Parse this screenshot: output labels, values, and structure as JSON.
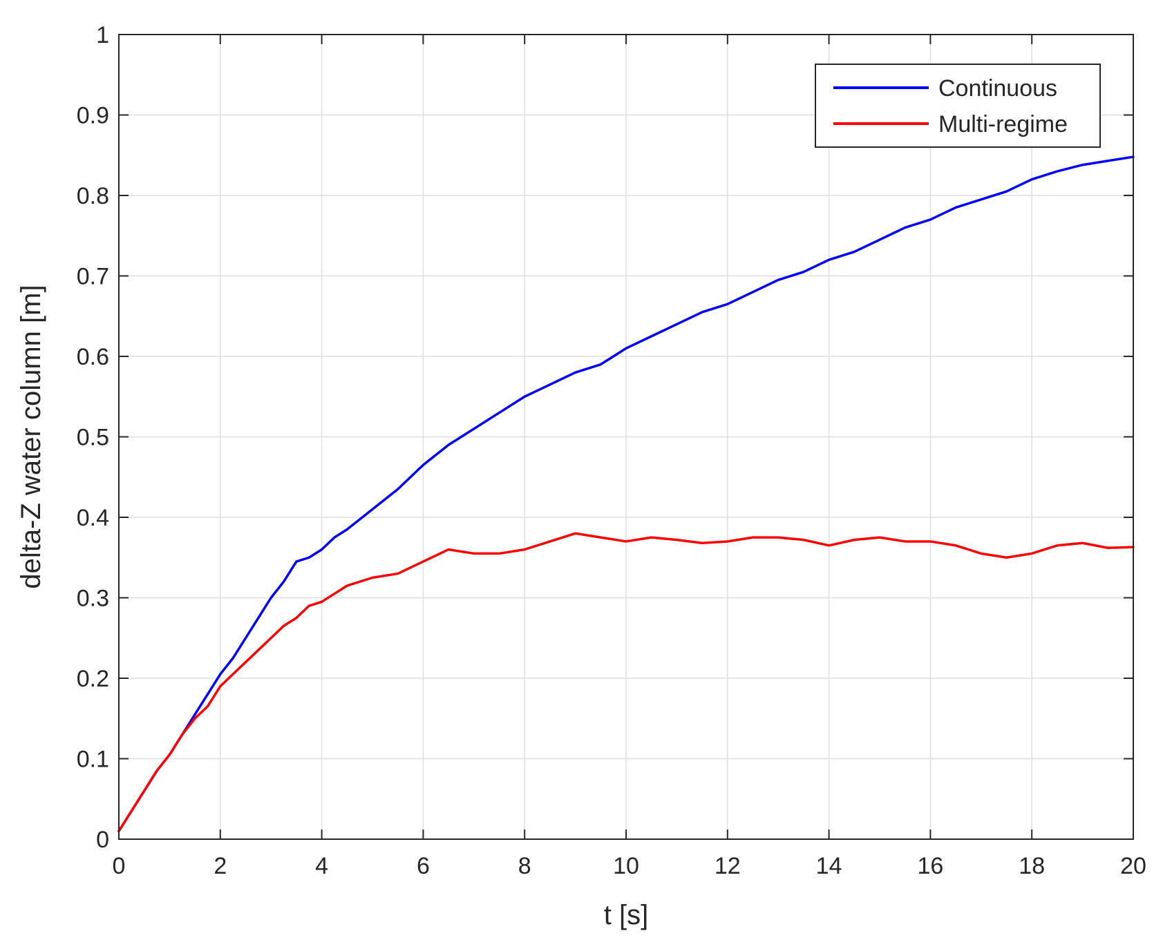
{
  "chart_data": {
    "type": "line",
    "title": "",
    "xlabel": "t [s]",
    "ylabel": "delta-Z water column [m]",
    "xlim": [
      0,
      20
    ],
    "ylim": [
      0,
      1
    ],
    "xticks": [
      0,
      2,
      4,
      6,
      8,
      10,
      12,
      14,
      16,
      18,
      20
    ],
    "yticks": [
      0,
      0.1,
      0.2,
      0.3,
      0.4,
      0.5,
      0.6,
      0.7,
      0.8,
      0.9,
      1
    ],
    "xtick_labels": [
      "0",
      "2",
      "4",
      "6",
      "8",
      "10",
      "12",
      "14",
      "16",
      "18",
      "20"
    ],
    "ytick_labels": [
      "0",
      "0.1",
      "0.2",
      "0.3",
      "0.4",
      "0.5",
      "0.6",
      "0.7",
      "0.8",
      "0.9",
      "1"
    ],
    "grid": true,
    "legend_position": "top-right",
    "series": [
      {
        "name": "Continuous",
        "color": "#0000ff",
        "x": [
          0,
          0.25,
          0.5,
          0.75,
          1,
          1.25,
          1.5,
          1.75,
          2,
          2.25,
          2.5,
          2.75,
          3,
          3.25,
          3.5,
          3.75,
          4,
          4.25,
          4.5,
          5,
          5.5,
          6,
          6.5,
          7,
          7.5,
          8,
          8.5,
          9,
          9.5,
          10,
          10.5,
          11,
          11.5,
          12,
          12.5,
          13,
          13.5,
          14,
          14.5,
          15,
          15.5,
          16,
          16.5,
          17,
          17.5,
          18,
          18.5,
          19,
          19.5,
          20
        ],
        "y": [
          0.01,
          0.035,
          0.06,
          0.085,
          0.105,
          0.13,
          0.155,
          0.18,
          0.205,
          0.225,
          0.25,
          0.275,
          0.3,
          0.32,
          0.345,
          0.35,
          0.36,
          0.375,
          0.385,
          0.41,
          0.435,
          0.465,
          0.49,
          0.51,
          0.53,
          0.55,
          0.565,
          0.58,
          0.59,
          0.61,
          0.625,
          0.64,
          0.655,
          0.665,
          0.68,
          0.695,
          0.705,
          0.72,
          0.73,
          0.745,
          0.76,
          0.77,
          0.785,
          0.795,
          0.805,
          0.82,
          0.83,
          0.838,
          0.843,
          0.848
        ]
      },
      {
        "name": "Multi-regime",
        "color": "#ff0000",
        "x": [
          0,
          0.25,
          0.5,
          0.75,
          1,
          1.25,
          1.5,
          1.75,
          2,
          2.25,
          2.5,
          2.75,
          3,
          3.25,
          3.5,
          3.75,
          4,
          4.25,
          4.5,
          5,
          5.5,
          6,
          6.5,
          7,
          7.5,
          8,
          8.5,
          9,
          9.5,
          10,
          10.5,
          11,
          11.5,
          12,
          12.5,
          13,
          13.5,
          14,
          14.5,
          15,
          15.5,
          16,
          16.5,
          17,
          17.5,
          18,
          18.5,
          19,
          19.5,
          20
        ],
        "y": [
          0.01,
          0.035,
          0.06,
          0.085,
          0.105,
          0.13,
          0.15,
          0.165,
          0.19,
          0.205,
          0.22,
          0.235,
          0.25,
          0.265,
          0.275,
          0.29,
          0.295,
          0.305,
          0.315,
          0.325,
          0.33,
          0.345,
          0.36,
          0.355,
          0.355,
          0.36,
          0.37,
          0.38,
          0.375,
          0.37,
          0.375,
          0.372,
          0.368,
          0.37,
          0.375,
          0.375,
          0.372,
          0.365,
          0.372,
          0.375,
          0.37,
          0.37,
          0.365,
          0.355,
          0.35,
          0.355,
          0.365,
          0.368,
          0.362,
          0.363
        ]
      }
    ]
  }
}
